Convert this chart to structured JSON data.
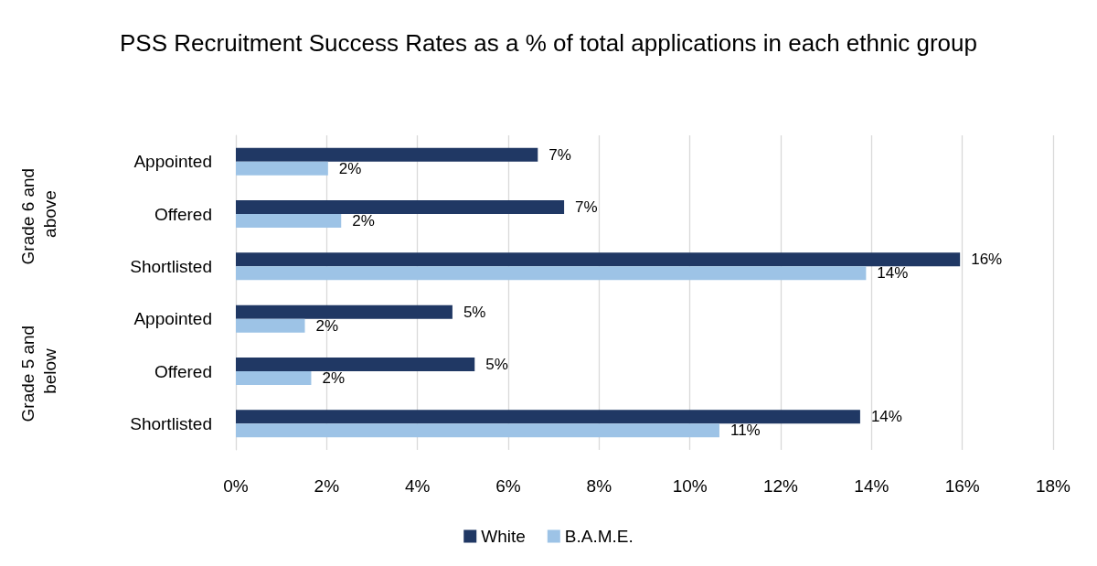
{
  "chart_data": {
    "type": "bar",
    "orientation": "horizontal",
    "title": "PSS Recruitment Success Rates as a % of total applications in each ethnic group",
    "categories": [
      "Appointed",
      "Offered",
      "Shortlisted",
      "Appointed",
      "Offered",
      "Shortlisted"
    ],
    "annotations": [
      "Grade 6 and above",
      "Grade 5 and below"
    ],
    "series": [
      {
        "name": "White",
        "color": "#203864",
        "values": [
          6.65,
          7.23,
          15.95,
          4.77,
          5.26,
          13.75
        ],
        "value_labels": [
          "7%",
          "7%",
          "16%",
          "5%",
          "5%",
          "14%"
        ]
      },
      {
        "name": "B.A.M.E.",
        "color": "#9dc3e6",
        "values": [
          2.03,
          2.32,
          13.88,
          1.52,
          1.66,
          10.65
        ],
        "value_labels": [
          "2%",
          "2%",
          "14%",
          "2%",
          "2%",
          "11%"
        ]
      }
    ],
    "xlim": [
      0,
      18
    ],
    "xticks": [
      {
        "value": 0,
        "label": "0%"
      },
      {
        "value": 2,
        "label": "2%"
      },
      {
        "value": 4,
        "label": "4%"
      },
      {
        "value": 6,
        "label": "6%"
      },
      {
        "value": 8,
        "label": "8%"
      },
      {
        "value": 10,
        "label": "10%"
      },
      {
        "value": 12,
        "label": "12%"
      },
      {
        "value": 14,
        "label": "14%"
      },
      {
        "value": 16,
        "label": "16%"
      },
      {
        "value": 18,
        "label": "18%"
      }
    ],
    "grid": "x",
    "legend": "bottom"
  }
}
